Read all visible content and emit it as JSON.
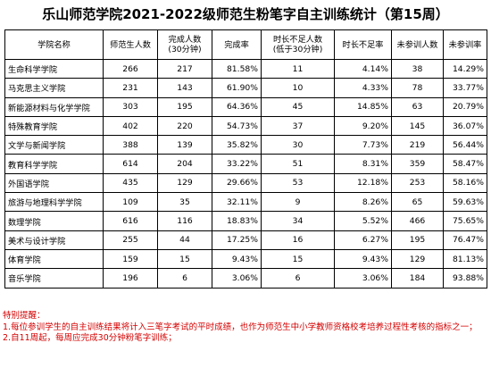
{
  "title": "乐山师范学院2021-2022级师范生粉笔字自主训练统计（第15周）",
  "headers": {
    "college": "学院名称",
    "students": "师范生人数",
    "completed": "完成人数\n(30分钟)",
    "completion_rate": "完成率",
    "short_time": "时长不足人数\n(低于30分钟)",
    "short_rate": "时长不足率",
    "absent": "未参训人数",
    "absent_rate": "未参训率"
  },
  "rows": [
    {
      "college": "生命科学学院",
      "students": "266",
      "completed": "217",
      "completion_rate": "81.58%",
      "short_time": "11",
      "short_rate": "4.14%",
      "absent": "38",
      "absent_rate": "14.29%"
    },
    {
      "college": "马克思主义学院",
      "students": "231",
      "completed": "143",
      "completion_rate": "61.90%",
      "short_time": "10",
      "short_rate": "4.33%",
      "absent": "78",
      "absent_rate": "33.77%"
    },
    {
      "college": "新能源材料与化学学院",
      "students": "303",
      "completed": "195",
      "completion_rate": "64.36%",
      "short_time": "45",
      "short_rate": "14.85%",
      "absent": "63",
      "absent_rate": "20.79%"
    },
    {
      "college": "特殊教育学院",
      "students": "402",
      "completed": "220",
      "completion_rate": "54.73%",
      "short_time": "37",
      "short_rate": "9.20%",
      "absent": "145",
      "absent_rate": "36.07%"
    },
    {
      "college": "文学与新闻学院",
      "students": "388",
      "completed": "139",
      "completion_rate": "35.82%",
      "short_time": "30",
      "short_rate": "7.73%",
      "absent": "219",
      "absent_rate": "56.44%"
    },
    {
      "college": "教育科学学院",
      "students": "614",
      "completed": "204",
      "completion_rate": "33.22%",
      "short_time": "51",
      "short_rate": "8.31%",
      "absent": "359",
      "absent_rate": "58.47%"
    },
    {
      "college": "外国语学院",
      "students": "435",
      "completed": "129",
      "completion_rate": "29.66%",
      "short_time": "53",
      "short_rate": "12.18%",
      "absent": "253",
      "absent_rate": "58.16%"
    },
    {
      "college": "旅游与地理科学学院",
      "students": "109",
      "completed": "35",
      "completion_rate": "32.11%",
      "short_time": "9",
      "short_rate": "8.26%",
      "absent": "65",
      "absent_rate": "59.63%"
    },
    {
      "college": "数理学院",
      "students": "616",
      "completed": "116",
      "completion_rate": "18.83%",
      "short_time": "34",
      "short_rate": "5.52%",
      "absent": "466",
      "absent_rate": "75.65%"
    },
    {
      "college": "美术与设计学院",
      "students": "255",
      "completed": "44",
      "completion_rate": "17.25%",
      "short_time": "16",
      "short_rate": "6.27%",
      "absent": "195",
      "absent_rate": "76.47%"
    },
    {
      "college": "体育学院",
      "students": "159",
      "completed": "15",
      "completion_rate": "9.43%",
      "short_time": "15",
      "short_rate": "9.43%",
      "absent": "129",
      "absent_rate": "81.13%"
    },
    {
      "college": "音乐学院",
      "students": "196",
      "completed": "6",
      "completion_rate": "3.06%",
      "short_time": "6",
      "short_rate": "3.06%",
      "absent": "184",
      "absent_rate": "93.88%"
    }
  ],
  "notes": {
    "heading": "特别提醒：",
    "line1": "1.每位参训学生的自主训练结果将计入三笔字考试的平时成绩，也作为师范生中小学教师资格校考培养过程性考核的指标之一；",
    "line2": "2.自11周起，每周应完成30分钟粉笔字训练；"
  },
  "colors": {
    "text": "#000000",
    "notes": "#d40000",
    "border": "#000000"
  }
}
